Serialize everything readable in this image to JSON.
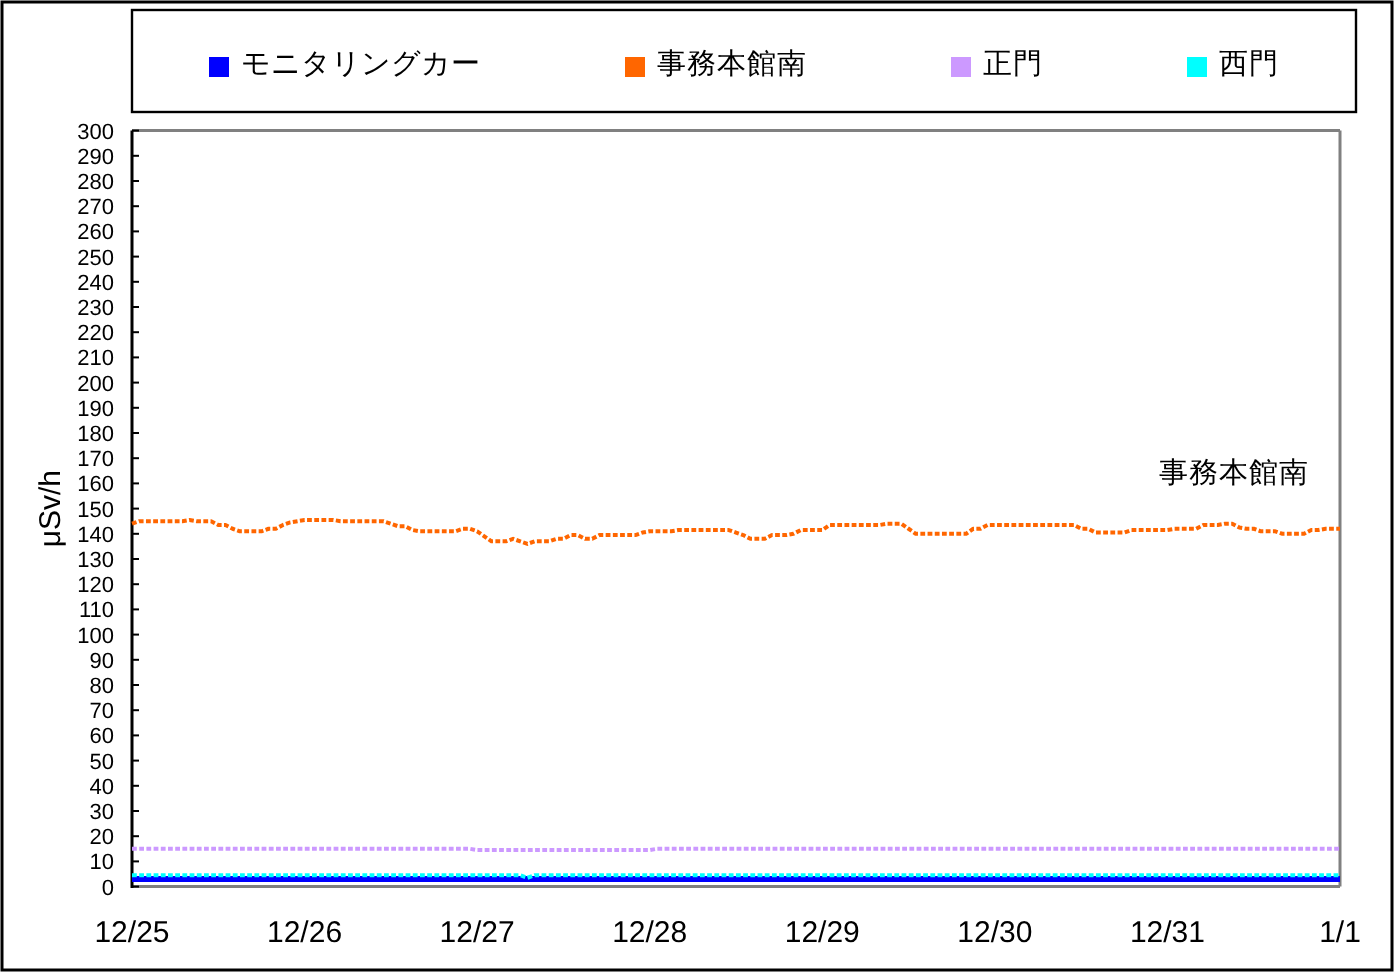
{
  "chart_data": {
    "type": "line",
    "ylabel": "μSv/h",
    "categories": [
      "12/25",
      null,
      null,
      null,
      null,
      null,
      null,
      null,
      null,
      null,
      null,
      null,
      null,
      null,
      null,
      null,
      null,
      null,
      null,
      null,
      null,
      null,
      null,
      null,
      "12/26",
      null,
      null,
      null,
      null,
      null,
      null,
      null,
      null,
      null,
      null,
      null,
      null,
      null,
      null,
      null,
      null,
      null,
      null,
      null,
      null,
      null,
      null,
      null,
      "12/27",
      null,
      null,
      null,
      null,
      null,
      null,
      null,
      null,
      null,
      null,
      null,
      null,
      null,
      null,
      null,
      null,
      null,
      null,
      null,
      null,
      null,
      null,
      null,
      "12/28",
      null,
      null,
      null,
      null,
      null,
      null,
      null,
      null,
      null,
      null,
      null,
      null,
      null,
      null,
      null,
      null,
      null,
      null,
      null,
      null,
      null,
      null,
      null,
      "12/29",
      null,
      null,
      null,
      null,
      null,
      null,
      null,
      null,
      null,
      null,
      null,
      null,
      null,
      null,
      null,
      null,
      null,
      null,
      null,
      null,
      null,
      null,
      null,
      "12/30",
      null,
      null,
      null,
      null,
      null,
      null,
      null,
      null,
      null,
      null,
      null,
      null,
      null,
      null,
      null,
      null,
      null,
      null,
      null,
      null,
      null,
      null,
      null,
      "12/31",
      null,
      null,
      null,
      null,
      null,
      null,
      null,
      null,
      null,
      null,
      null,
      null,
      null,
      null,
      null,
      null,
      null,
      null,
      null,
      null,
      null,
      null,
      null,
      "1/1"
    ],
    "ylim": [
      0,
      300
    ],
    "yticks": [
      0,
      10,
      20,
      30,
      40,
      50,
      60,
      70,
      80,
      90,
      100,
      110,
      120,
      130,
      140,
      150,
      160,
      170,
      180,
      190,
      200,
      210,
      220,
      230,
      240,
      250,
      260,
      270,
      280,
      290,
      300
    ],
    "legend": "top",
    "line_style": "dotted",
    "annotations": [
      {
        "text": "事務本館南",
        "y": 144
      }
    ],
    "series": [
      {
        "name": "モニタリングカー",
        "color": "#0000ff",
        "line_style": "solid",
        "values": [
          3,
          3,
          3,
          3,
          3,
          3,
          3,
          3,
          3,
          3,
          3,
          3,
          3,
          3,
          3,
          3,
          3,
          3,
          3,
          3,
          3,
          3,
          3,
          3,
          3,
          3,
          3,
          3,
          3,
          3,
          3,
          3,
          3,
          3,
          3,
          3,
          3,
          3,
          3,
          3,
          3,
          3,
          3,
          3,
          3,
          3,
          3,
          3,
          3,
          3,
          3,
          3,
          3,
          3,
          3,
          3,
          3,
          3,
          3,
          3,
          3,
          3,
          3,
          3,
          3,
          3,
          3,
          3,
          3,
          3,
          3,
          3,
          3,
          3,
          3,
          3,
          3,
          3,
          3,
          3,
          3,
          3,
          3,
          3,
          3,
          3,
          3,
          3,
          3,
          3,
          3,
          3,
          3,
          3,
          3,
          3,
          3,
          3,
          3,
          3,
          3,
          3,
          3,
          3,
          3,
          3,
          3,
          3,
          3,
          3,
          3,
          3,
          3,
          3,
          3,
          3,
          3,
          3,
          3,
          3,
          3,
          3,
          3,
          3,
          3,
          3,
          3,
          3,
          3,
          3,
          3,
          3,
          3,
          3,
          3,
          3,
          3,
          3,
          3,
          3,
          3,
          3,
          3,
          3,
          3,
          3,
          3,
          3,
          3,
          3,
          3,
          3,
          3,
          3,
          3,
          3,
          3,
          3,
          3,
          3,
          3,
          3,
          3,
          3,
          3,
          3,
          3,
          3,
          3
        ]
      },
      {
        "name": "事務本館南",
        "color": "#ff6600",
        "values": [
          144,
          145,
          145,
          145,
          145,
          145,
          145,
          145,
          145.5,
          145,
          145,
          145,
          143.5,
          143.5,
          142,
          141,
          141,
          141,
          141,
          142,
          142,
          143.5,
          144.5,
          145,
          145.5,
          145.5,
          145.5,
          145.5,
          145.5,
          145,
          145,
          145,
          145,
          145,
          145,
          145,
          144,
          143,
          143,
          141.5,
          141,
          141,
          141,
          141,
          141,
          141,
          142,
          142,
          141,
          139,
          137,
          137,
          137,
          138,
          137,
          136,
          137,
          137,
          137,
          138,
          138,
          139.5,
          139.5,
          138,
          138,
          139.5,
          139.5,
          139.5,
          139.5,
          139.5,
          139.5,
          140.5,
          141,
          141,
          141,
          141,
          141.5,
          141.5,
          141.5,
          141.5,
          141.5,
          141.5,
          141.5,
          141.5,
          140.5,
          139.5,
          138,
          138,
          138,
          139.5,
          139.5,
          139.5,
          140,
          141.5,
          141.5,
          141.5,
          141.5,
          143.5,
          143.5,
          143.5,
          143.5,
          143.5,
          143.5,
          143.5,
          143.5,
          144,
          144,
          144,
          142,
          140,
          140,
          140,
          140,
          140,
          140,
          140,
          140,
          142,
          142,
          143.5,
          143.5,
          143.5,
          143.5,
          143.5,
          143.5,
          143.5,
          143.5,
          143.5,
          143.5,
          143.5,
          143.5,
          143.5,
          142,
          142,
          140.5,
          140.5,
          140.5,
          140.5,
          140.5,
          141.5,
          141.5,
          141.5,
          141.5,
          141.5,
          141.5,
          142,
          142,
          142,
          142,
          143.5,
          143.5,
          143.5,
          144,
          144,
          142.5,
          142,
          142,
          141,
          141,
          141,
          140,
          140,
          140,
          140,
          141.5,
          141.5,
          142,
          142,
          142
        ]
      },
      {
        "name": "正門",
        "color": "#cc99ff",
        "values": [
          15,
          15,
          15,
          15,
          15,
          15,
          15,
          15,
          15,
          15,
          15,
          15,
          15,
          15,
          15,
          15,
          15,
          15,
          15,
          15,
          15,
          15,
          15,
          15,
          15,
          15,
          15,
          15,
          15,
          15,
          15,
          15,
          15,
          15,
          15,
          15,
          15,
          15,
          15,
          15,
          15,
          15,
          15,
          15,
          15,
          15,
          15,
          15,
          14.5,
          14.5,
          14.5,
          14.5,
          14.5,
          14.5,
          14.5,
          14.5,
          14.5,
          14.5,
          14.5,
          14.5,
          14.5,
          14.5,
          14.5,
          14.5,
          14.5,
          14.5,
          14.5,
          14.5,
          14.5,
          14.5,
          14.5,
          14.5,
          14.5,
          15,
          15,
          15,
          15,
          15,
          15,
          15,
          15,
          15,
          15,
          15,
          15,
          15,
          15,
          15,
          15,
          15,
          15,
          15,
          15,
          15,
          15,
          15,
          15,
          15,
          15,
          15,
          15,
          15,
          15,
          15,
          15,
          15,
          15,
          15,
          15,
          15,
          15,
          15,
          15,
          15,
          15,
          15,
          15,
          15,
          15,
          15,
          15,
          15,
          15,
          15,
          15,
          15,
          15,
          15,
          15,
          15,
          15,
          15,
          15,
          15,
          15,
          15,
          15,
          15,
          15,
          15,
          15,
          15,
          15,
          15,
          15,
          15,
          15,
          15,
          15,
          15,
          15,
          15,
          15,
          15,
          15,
          15,
          15,
          15,
          15,
          15,
          15,
          15,
          15,
          15,
          15,
          15,
          15,
          15,
          15
        ]
      },
      {
        "name": "西門",
        "color": "#00ffff",
        "values": [
          4.5,
          4.5,
          4.5,
          4.5,
          4.5,
          4.5,
          4.5,
          4.5,
          4.5,
          4.5,
          4.5,
          4.5,
          4.5,
          4.5,
          4.5,
          4.5,
          4.5,
          4.5,
          4.5,
          4.5,
          4.5,
          4.5,
          4.5,
          4.5,
          4.5,
          4.5,
          4.5,
          4.5,
          4.5,
          4.5,
          4.5,
          4.5,
          4.5,
          4.5,
          4.5,
          4.5,
          4.5,
          4.5,
          4.5,
          4.5,
          4.5,
          4.5,
          4.5,
          4.5,
          4.5,
          4.5,
          4.5,
          4.5,
          4.5,
          4.5,
          4.5,
          4.5,
          4.5,
          4.5,
          4.5,
          3.5,
          4.5,
          4.5,
          4.5,
          4.5,
          4.5,
          4.5,
          4.5,
          4.5,
          4.5,
          4.5,
          4.5,
          4.5,
          4.5,
          4.5,
          4.5,
          4.5,
          4.5,
          4.5,
          4.5,
          4.5,
          4.5,
          4.5,
          4.5,
          4.5,
          4.5,
          4.5,
          4.5,
          4.5,
          4.5,
          4.5,
          4.5,
          4.5,
          4.5,
          4.5,
          4.5,
          4.5,
          4.5,
          4.5,
          4.5,
          4.5,
          4.5,
          4.5,
          4.5,
          4.5,
          4.5,
          4.5,
          4.5,
          4.5,
          4.5,
          4.5,
          4.5,
          4.5,
          4.5,
          4.5,
          4.5,
          4.5,
          4.5,
          4.5,
          4.5,
          4.5,
          4.5,
          4.5,
          4.5,
          4.5,
          4.5,
          4.5,
          4.5,
          4.5,
          4.5,
          4.5,
          4.5,
          4.5,
          4.5,
          4.5,
          4.5,
          4.5,
          4.5,
          4.5,
          4.5,
          4.5,
          4.5,
          4.5,
          4.5,
          4.5,
          4.5,
          4.5,
          4.5,
          4.5,
          4.5,
          4.5,
          4.5,
          4.5,
          4.5,
          4.5,
          4.5,
          4.5,
          4.5,
          4.5,
          4.5,
          4.5,
          4.5,
          4.5,
          4.5,
          4.5,
          4.5,
          4.5,
          4.5,
          4.5,
          4.5,
          4.5,
          4.5,
          4.5,
          4.5
        ]
      }
    ]
  }
}
